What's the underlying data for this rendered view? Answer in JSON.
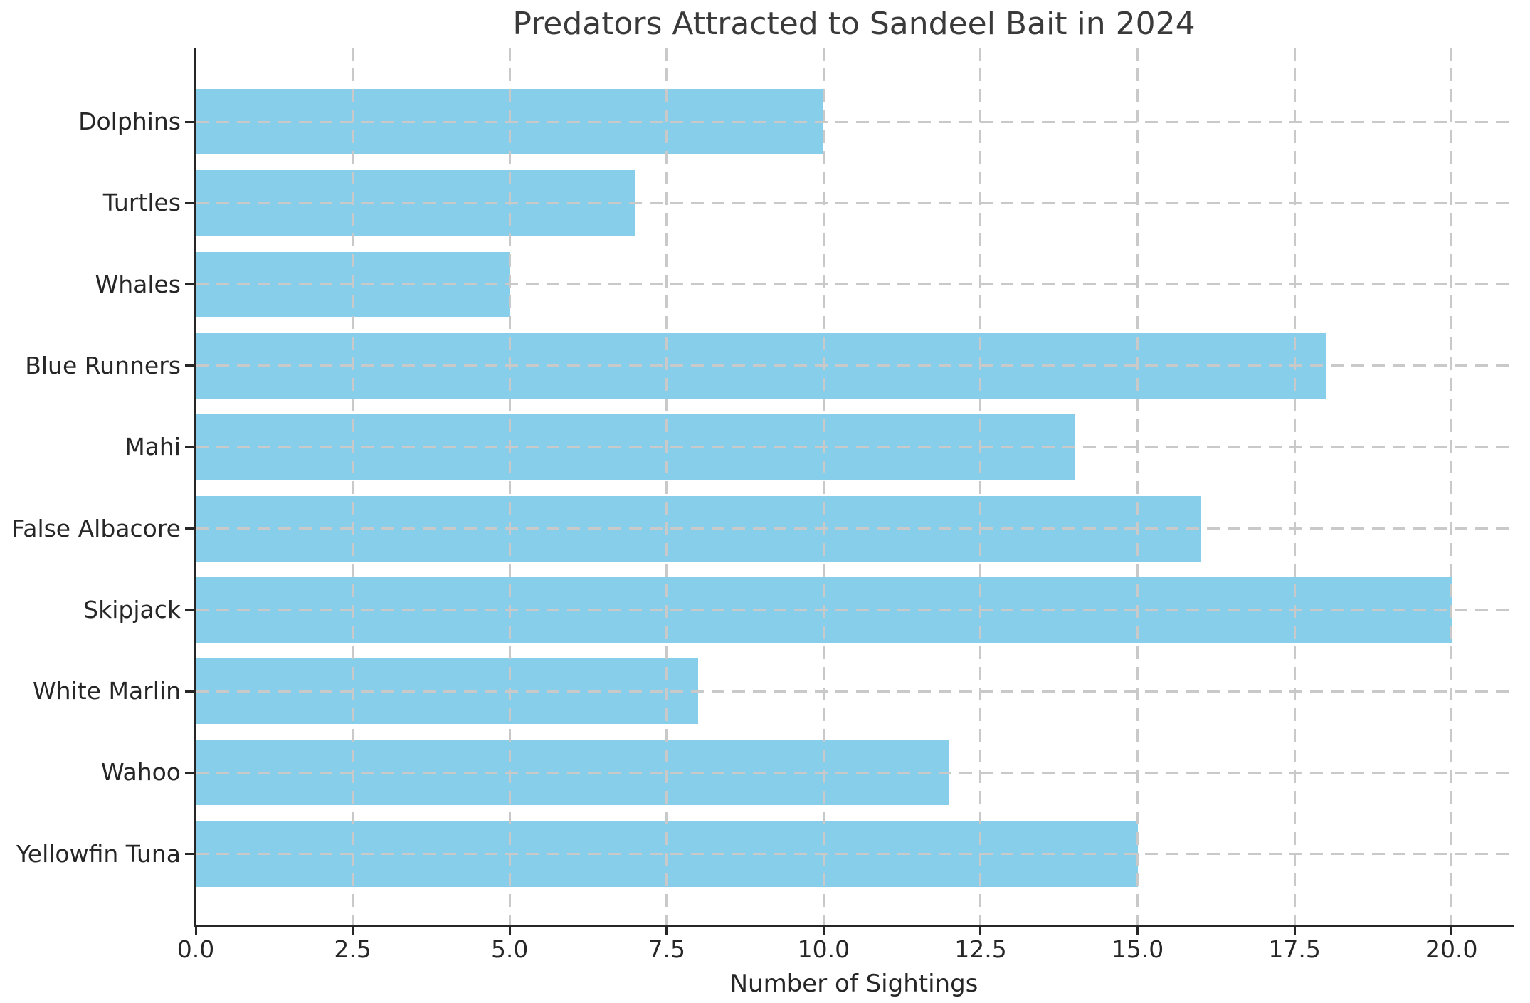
{
  "chart_data": {
    "type": "bar",
    "orientation": "horizontal",
    "title": "Predators Attracted to Sandeel Bait in 2024",
    "xlabel": "Number of Sightings",
    "ylabel": "",
    "categories": [
      "Dolphins",
      "Turtles",
      "Whales",
      "Blue Runners",
      "Mahi",
      "False Albacore",
      "Skipjack",
      "White Marlin",
      "Wahoo",
      "Yellowfin Tuna"
    ],
    "values": [
      10,
      7,
      5,
      18,
      14,
      16,
      20,
      8,
      12,
      15
    ],
    "xlim": [
      0,
      21
    ],
    "xticks": [
      0,
      2.5,
      5,
      7.5,
      10,
      12.5,
      15,
      17.5,
      20
    ],
    "xtick_labels": [
      "0.0",
      "2.5",
      "5.0",
      "7.5",
      "10.0",
      "12.5",
      "15.0",
      "17.5",
      "20.0"
    ],
    "grid": true,
    "grid_style": "dashed",
    "legend": "none",
    "colors": {
      "bar": "#87ceeb",
      "grid": "#c9c9c9",
      "axis": "#262626",
      "tick_text": "#262626",
      "title_text": "#3a3a3a",
      "background": "#ffffff"
    }
  }
}
